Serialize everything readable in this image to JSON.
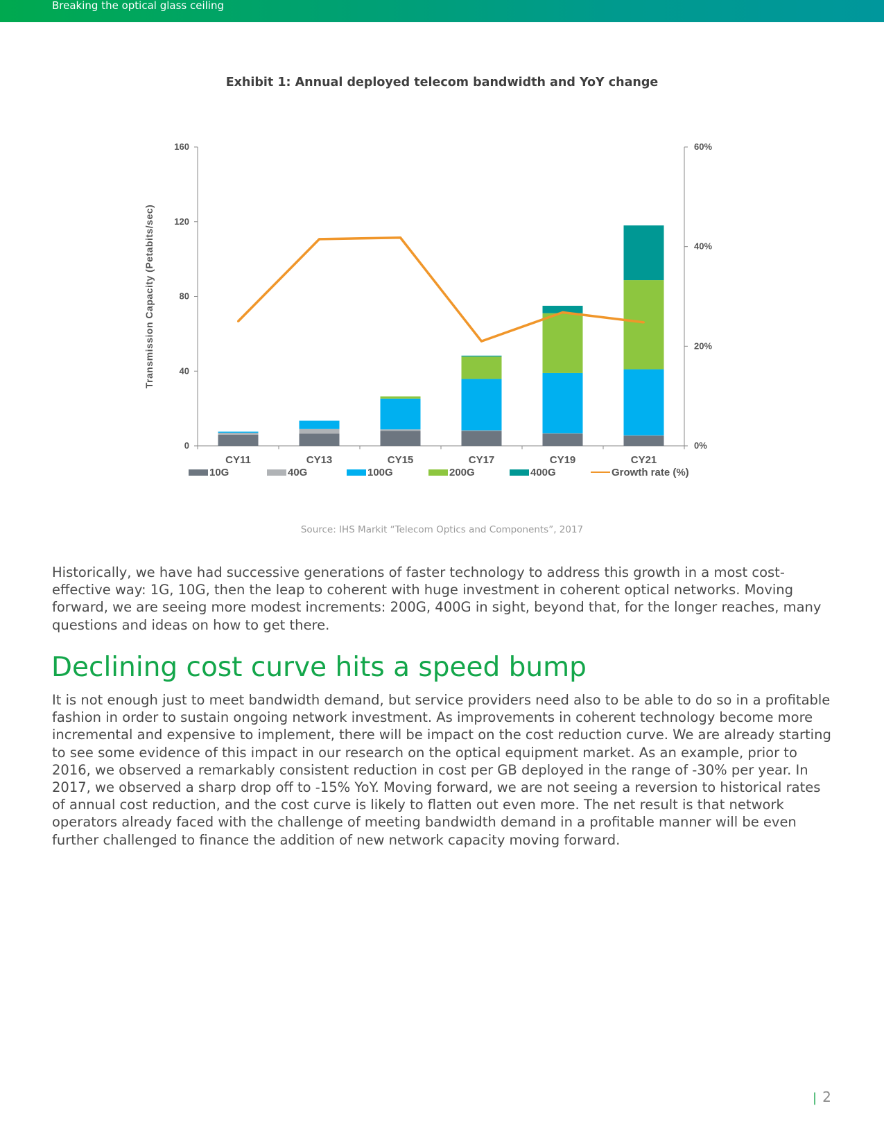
{
  "header": {
    "title": "Breaking the optical glass ceiling"
  },
  "exhibit": {
    "title": "Exhibit 1: Annual deployed telecom bandwidth and YoY change",
    "source": "Source: IHS Markit “Telecom Optics and Components”, 2017"
  },
  "colors": {
    "header_green": "#00a94f",
    "header_teal": "#00979c",
    "heading_green": "#13a64a",
    "10G": "#6d7680",
    "40G": "#b0b3b6",
    "100G": "#00b0f0",
    "200G": "#8dc63f",
    "400G": "#009894",
    "growth": "#f0962a"
  },
  "chart_data": {
    "type": "bar",
    "title": "Exhibit 1: Annual deployed telecom bandwidth and YoY change",
    "xlabel": "",
    "ylabel": "Transmission Capacity (Petabits/sec)",
    "ylim": [
      0,
      160
    ],
    "y_ticks": [
      "0",
      "40",
      "80",
      "120",
      "160"
    ],
    "y2lim": [
      0,
      0.6
    ],
    "y2_ticks": [
      "0%",
      "20%",
      "40%",
      "60%"
    ],
    "categories": [
      "CY11",
      "CY13",
      "CY15",
      "CY17",
      "CY19",
      "CY21"
    ],
    "stacked": true,
    "series": [
      {
        "name": "10G",
        "values": [
          6,
          6.5,
          8,
          8,
          6.5,
          5.5
        ]
      },
      {
        "name": "40G",
        "values": [
          1,
          2.5,
          0.8,
          0.3,
          0.2,
          0.1
        ]
      },
      {
        "name": "100G",
        "values": [
          0.6,
          4.5,
          16.5,
          27.5,
          32.3,
          35.4
        ]
      },
      {
        "name": "200G",
        "values": [
          0,
          0,
          1.2,
          12,
          32,
          47.7
        ]
      },
      {
        "name": "400G",
        "values": [
          0,
          0,
          0,
          0.5,
          4,
          29.3
        ]
      }
    ],
    "line_series": {
      "name": "Growth rate (%)",
      "axis": "right",
      "values": [
        0.25,
        0.415,
        0.418,
        0.21,
        0.268,
        0.248
      ]
    },
    "legend": [
      "10G",
      "40G",
      "100G",
      "200G",
      "400G",
      "Growth rate (%)"
    ],
    "legend_position": "bottom",
    "grid": false
  },
  "body": {
    "para1": "Historically, we have had successive generations of faster technology to address this growth in a most cost-effective way: 1G, 10G, then the leap to coherent with huge investment in coherent optical networks. Moving forward, we are seeing more modest increments: 200G, 400G in sight, beyond that, for the longer reaches, many questions and ideas on how to get there.",
    "heading": "Declining cost curve hits a speed bump",
    "para2": "It is not enough just to meet bandwidth demand, but service providers need also to be able to do so in a profitable fashion in order to sustain ongoing network investment. As improvements in coherent technology become more incremental and expensive to implement, there will be impact on the cost reduction curve. We are already starting to see some evidence of this impact in our research on the optical equipment market. As an example, prior to 2016, we observed a remarkably consistent reduction in cost per GB deployed in the range of -30% per year. In 2017, we observed a sharp drop off to -15% YoY. Moving forward, we are not seeing a reversion to historical rates of annual cost reduction, and the cost curve is likely to flatten out even more. The net result is that network operators already faced with the challenge of meeting bandwidth demand in a profitable manner will be even further challenged to finance the addition of new network capacity moving forward."
  },
  "footer": {
    "page_separator": "|",
    "page_number": "2"
  }
}
